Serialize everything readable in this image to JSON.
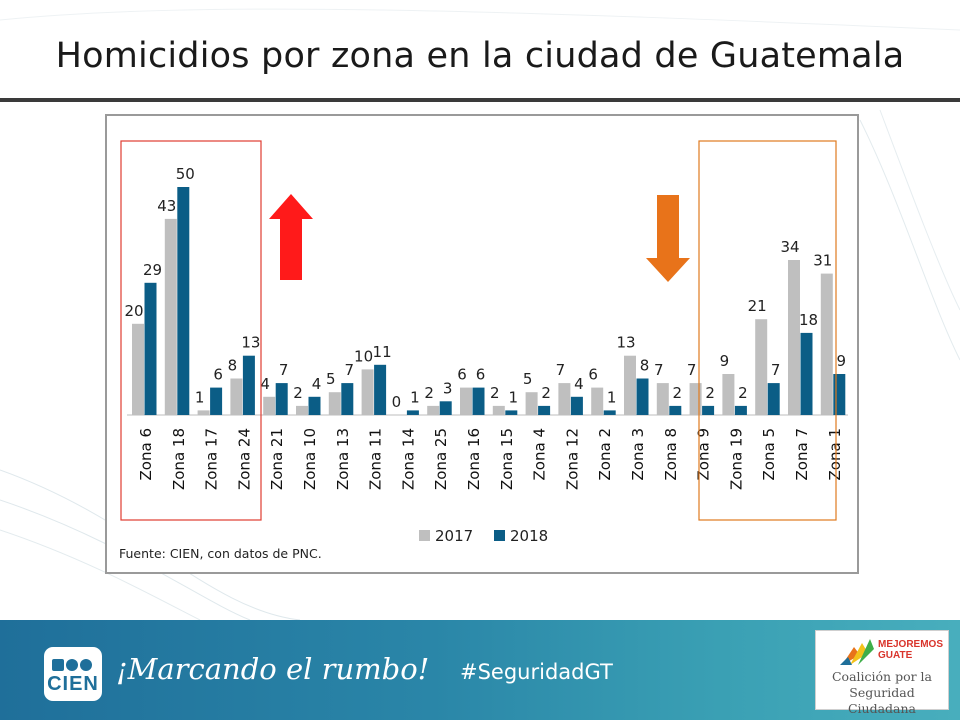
{
  "slide": {
    "title": "Homicidios por zona en la ciudad de Guatemala"
  },
  "chart": {
    "source_note": "Fuente: CIEN, con datos de PNC."
  },
  "chart_data": {
    "type": "bar",
    "title": "",
    "xlabel": "",
    "ylabel": "",
    "categories": [
      "Zona 6",
      "Zona 18",
      "Zona 17",
      "Zona 24",
      "Zona 21",
      "Zona 10",
      "Zona 13",
      "Zona 11",
      "Zona 14",
      "Zona 25",
      "Zona 16",
      "Zona 15",
      "Zona 4",
      "Zona 12",
      "Zona 2",
      "Zona 3",
      "Zona 8",
      "Zona 9",
      "Zona 19",
      "Zona 5",
      "Zona 7",
      "Zona 1"
    ],
    "series": [
      {
        "name": "2017",
        "color": "#bfbfbf",
        "values": [
          20,
          43,
          1,
          8,
          4,
          2,
          5,
          10,
          0,
          2,
          6,
          2,
          5,
          7,
          6,
          13,
          7,
          7,
          9,
          21,
          34,
          31
        ]
      },
      {
        "name": "2018",
        "color": "#0b5d86",
        "values": [
          29,
          50,
          6,
          13,
          7,
          4,
          7,
          11,
          1,
          3,
          6,
          1,
          2,
          4,
          1,
          8,
          2,
          2,
          2,
          7,
          18,
          9
        ]
      }
    ],
    "ylim": [
      0,
      55
    ],
    "grid": false,
    "legend": "bottom-center",
    "annotations": [
      {
        "kind": "highlight-box",
        "color": "#e03c31",
        "categories": [
          "Zona 6",
          "Zona 18",
          "Zona 17",
          "Zona 24"
        ]
      },
      {
        "kind": "highlight-box",
        "color": "#e07a1f",
        "categories": [
          "Zona 19",
          "Zona 5",
          "Zona 7",
          "Zona 1"
        ]
      },
      {
        "kind": "up-arrow",
        "color": "#ff1a1a"
      },
      {
        "kind": "down-arrow",
        "color": "#e8731a"
      }
    ]
  },
  "footer": {
    "logo_text": "CIEN",
    "slogan": "¡Marcando el rumbo!",
    "hashtag": "#SeguridadGT",
    "partner_brand_line1": "MEJOREMOS",
    "partner_brand_line2": "GUATE",
    "partner_name_line1": "Coalición por la",
    "partner_name_line2": "Seguridad Ciudadana"
  }
}
